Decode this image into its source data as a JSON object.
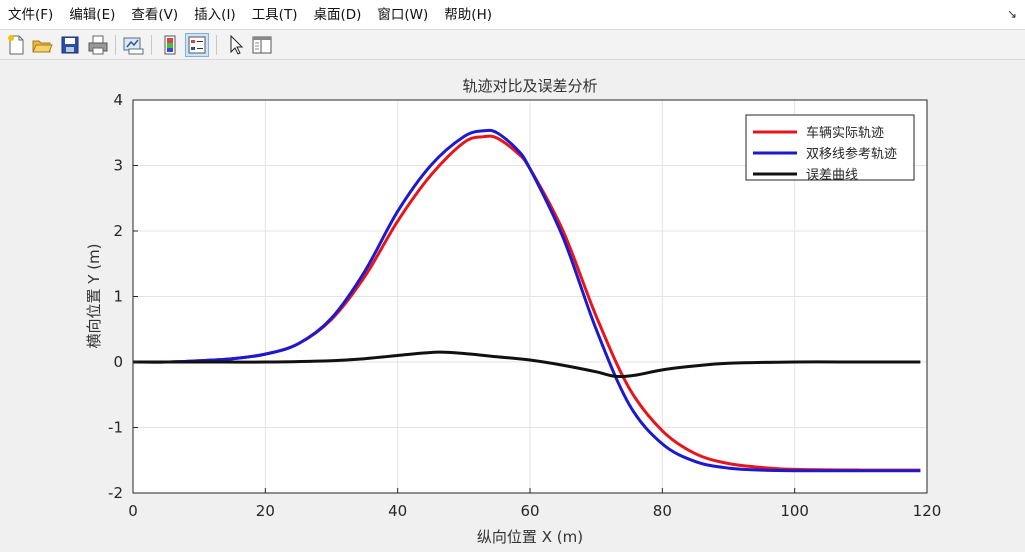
{
  "menu": [
    "文件(F)",
    "编辑(E)",
    "查看(V)",
    "插入(I)",
    "工具(T)",
    "桌面(D)",
    "窗口(W)",
    "帮助(H)"
  ],
  "menu_corner": "↘",
  "toolbar": {
    "buttons": [
      "new-file-icon",
      "open-folder-icon",
      "save-icon",
      "print-icon",
      "link-plot-icon",
      "colorbar-icon",
      "legend-icon",
      "pointer-icon",
      "property-editor-icon"
    ],
    "active": "legend-icon"
  },
  "chart_data": {
    "type": "line",
    "title": "轨迹对比及误差分析",
    "xlabel": "纵向位置 X (m)",
    "ylabel": "横向位置 Y (m)",
    "xlim": [
      0,
      120
    ],
    "ylim": [
      -2,
      4
    ],
    "xticks": [
      0,
      20,
      40,
      60,
      80,
      100,
      120
    ],
    "yticks": [
      -2,
      -1,
      0,
      1,
      2,
      3,
      4
    ],
    "grid": true,
    "legend_position": "top-right",
    "series": [
      {
        "name": "车辆实际轨迹",
        "color": "#e8141c",
        "x": [
          0,
          5,
          10,
          15,
          20,
          25,
          30,
          35,
          40,
          45,
          50,
          53,
          55,
          58,
          60,
          65,
          70,
          75,
          80,
          85,
          90,
          95,
          100,
          110,
          119
        ],
        "y": [
          0.0,
          0.0,
          0.02,
          0.05,
          0.12,
          0.28,
          0.65,
          1.3,
          2.15,
          2.85,
          3.35,
          3.44,
          3.42,
          3.2,
          2.95,
          2.0,
          0.7,
          -0.4,
          -1.05,
          -1.4,
          -1.55,
          -1.61,
          -1.64,
          -1.65,
          -1.65
        ]
      },
      {
        "name": "双移线参考轨迹",
        "color": "#1a1ad0",
        "x": [
          0,
          5,
          10,
          15,
          20,
          25,
          30,
          35,
          40,
          45,
          50,
          53,
          55,
          58,
          60,
          65,
          70,
          75,
          80,
          85,
          90,
          95,
          100,
          110,
          119
        ],
        "y": [
          0.0,
          0.0,
          0.02,
          0.05,
          0.12,
          0.28,
          0.67,
          1.38,
          2.3,
          3.0,
          3.44,
          3.53,
          3.5,
          3.25,
          2.95,
          1.9,
          0.5,
          -0.65,
          -1.25,
          -1.52,
          -1.62,
          -1.65,
          -1.66,
          -1.66,
          -1.66
        ]
      },
      {
        "name": "误差曲线",
        "color": "#111111",
        "x": [
          0,
          10,
          20,
          30,
          35,
          40,
          46,
          50,
          55,
          60,
          65,
          70,
          73,
          76,
          80,
          85,
          90,
          100,
          110,
          119
        ],
        "y": [
          0.0,
          0.0,
          0.0,
          0.02,
          0.05,
          0.1,
          0.15,
          0.13,
          0.08,
          0.03,
          -0.05,
          -0.15,
          -0.22,
          -0.2,
          -0.12,
          -0.06,
          -0.02,
          0.0,
          0.0,
          0.0
        ]
      }
    ]
  }
}
